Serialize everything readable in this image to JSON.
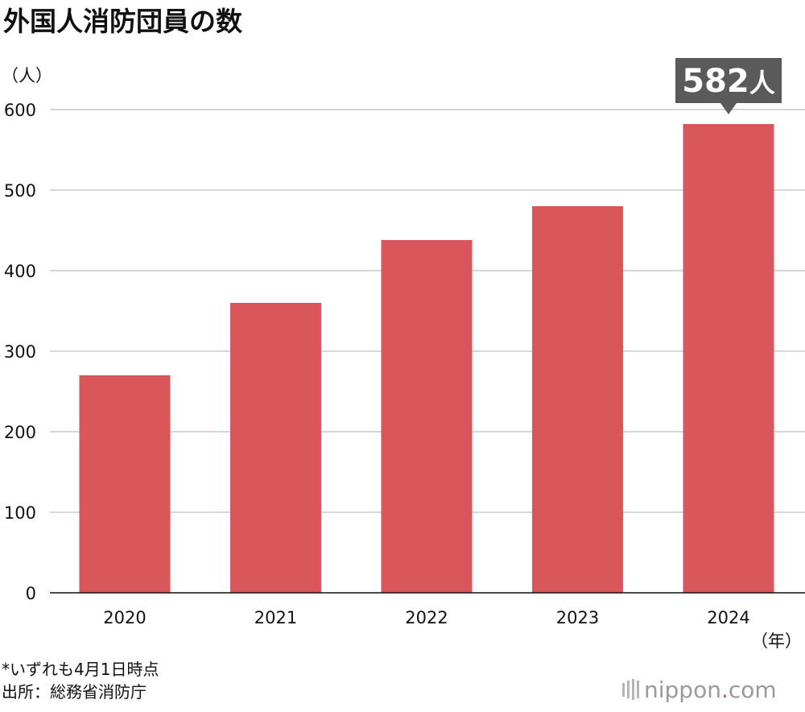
{
  "chart_data": {
    "type": "bar",
    "title": "外国人消防団員の数",
    "y_unit_label": "（人）",
    "x_unit_label": "（年）",
    "categories": [
      "2020",
      "2021",
      "2022",
      "2023",
      "2024"
    ],
    "values": [
      270,
      360,
      438,
      480,
      582
    ],
    "ylim": [
      0,
      600
    ],
    "y_ticks": [
      0,
      100,
      200,
      300,
      400,
      500,
      600
    ],
    "bar_color": "#d9565a",
    "grid": true,
    "callout": {
      "category": "2024",
      "value_text": "582",
      "unit_text": "人",
      "color": "#5a5a5a"
    }
  },
  "footer": {
    "note": "*いずれも4月1日時点",
    "source": "出所：総務省消防庁",
    "brand_name": "nippon",
    "brand_dot": ".",
    "brand_tld": "com",
    "brand_dot_color": "#d9565a"
  }
}
